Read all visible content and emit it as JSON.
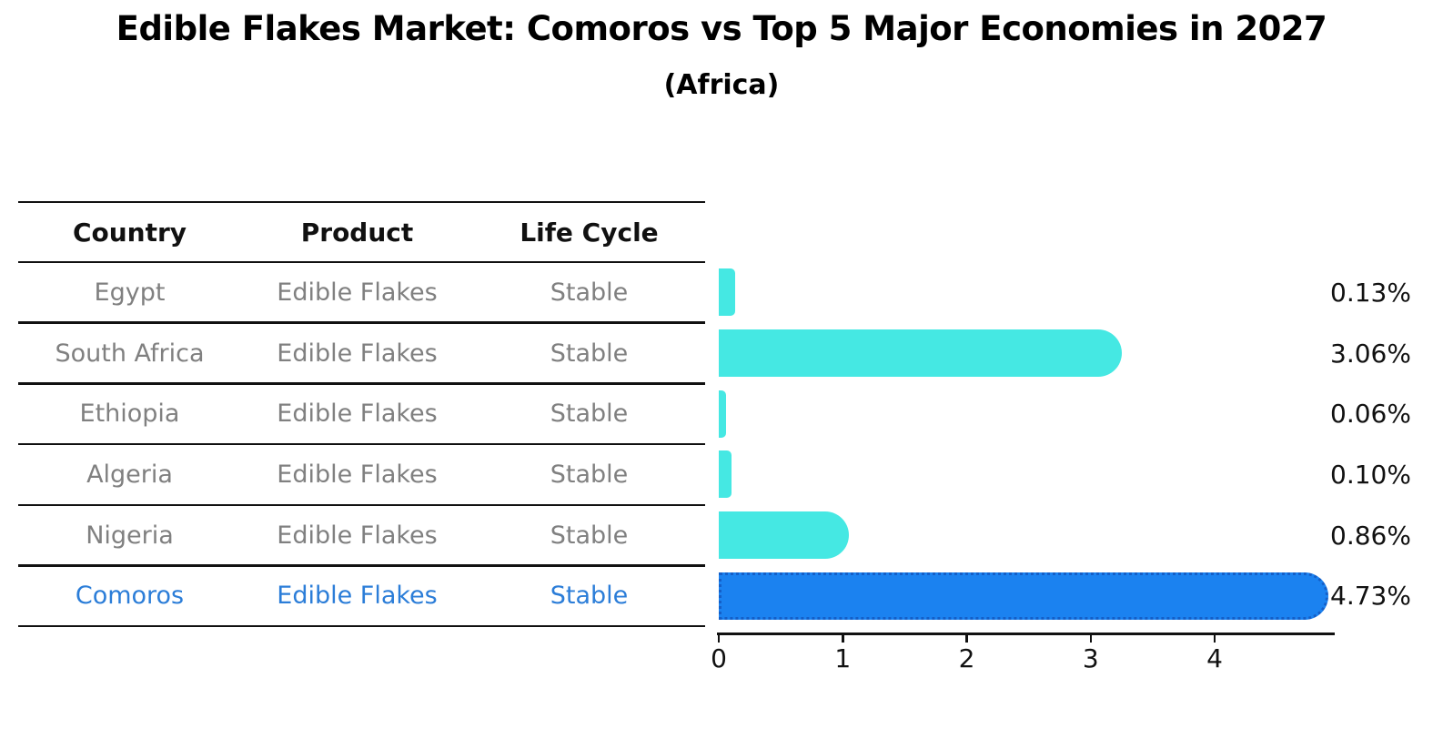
{
  "title": "Edible Flakes Market: Comoros vs Top 5 Major Economies in 2027",
  "subtitle": "(Africa)",
  "table": {
    "columns": [
      "Country",
      "Product",
      "Life Cycle"
    ],
    "rows": [
      {
        "country": "Egypt",
        "product": "Edible Flakes",
        "life_cycle": "Stable",
        "highlight": false
      },
      {
        "country": "South Africa",
        "product": "Edible Flakes",
        "life_cycle": "Stable",
        "highlight": false
      },
      {
        "country": "Ethiopia",
        "product": "Edible Flakes",
        "life_cycle": "Stable",
        "highlight": false
      },
      {
        "country": "Algeria",
        "product": "Edible Flakes",
        "life_cycle": "Stable",
        "highlight": false
      },
      {
        "country": "Nigeria",
        "product": "Edible Flakes",
        "life_cycle": "Stable",
        "highlight": false
      },
      {
        "country": "Comoros",
        "product": "Edible Flakes",
        "life_cycle": "Stable",
        "highlight": true
      }
    ]
  },
  "chart_data": {
    "type": "bar",
    "orientation": "horizontal",
    "title": "Edible Flakes Market: Comoros vs Top 5 Major Economies in 2027",
    "subtitle": "(Africa)",
    "categories": [
      "Egypt",
      "South Africa",
      "Ethiopia",
      "Algeria",
      "Nigeria",
      "Comoros"
    ],
    "values": [
      0.13,
      3.06,
      0.06,
      0.1,
      0.86,
      4.73
    ],
    "value_labels": [
      "0.13%",
      "3.06%",
      "0.06%",
      "0.10%",
      "0.86%",
      "4.73%"
    ],
    "highlight_index": 5,
    "x_ticks": [
      0,
      1,
      2,
      3,
      4
    ],
    "x_tick_labels": [
      "0",
      "1",
      "2",
      "3",
      "4"
    ],
    "xlim": [
      0,
      4.97
    ],
    "xlabel": "",
    "ylabel": "",
    "grid": false,
    "legend": "none"
  },
  "colors": {
    "bar": "#45E8E3",
    "highlight_bar": "#1B82F0",
    "highlight_bar_border": "#145FC8",
    "highlight_text": "#2B7DD8",
    "muted_text": "#808080",
    "axis": "#111111"
  }
}
